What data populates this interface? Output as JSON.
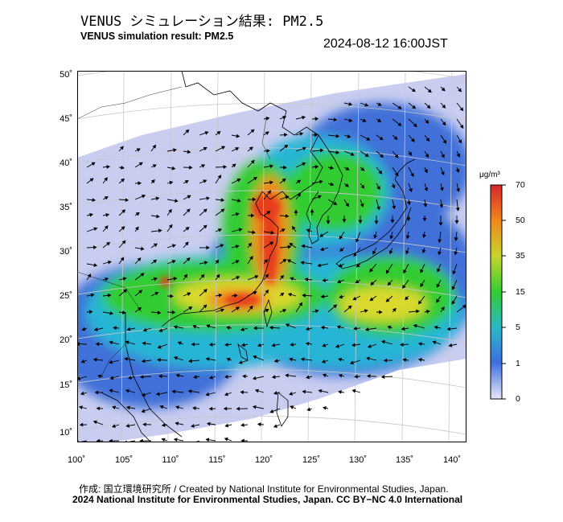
{
  "header": {
    "title_jp": "VENUS シミュレーション結果: PM2.5",
    "title_en": "VENUS simulation result: PM2.5",
    "timestamp": "2024-08-12 16:00JST"
  },
  "map": {
    "lat_labels": [
      "50˚",
      "45˚",
      "40˚",
      "35˚",
      "30˚",
      "25˚",
      "20˚",
      "15˚",
      "10˚"
    ],
    "lon_labels": [
      "100˚",
      "105˚",
      "110˚",
      "115˚",
      "120˚",
      "125˚",
      "130˚",
      "135˚",
      "140˚"
    ],
    "lat_range": [
      9,
      50
    ],
    "lon_range": [
      100,
      141
    ],
    "field_colors": {
      "low": "#d9dcf5",
      "blue": "#3f6fd8",
      "cyan": "#27b5d6",
      "green": "#33cc33",
      "yellow": "#d9d92e",
      "orange": "#f08a1c",
      "red": "#e63c1e"
    }
  },
  "colorbar": {
    "unit": "μg/m³",
    "tick_labels": [
      "70",
      "50",
      "35",
      "15",
      "5",
      "1",
      "0"
    ],
    "colors": [
      "#d9262b",
      "#f08a1c",
      "#c8d42a",
      "#33cc33",
      "#29b7c9",
      "#3d6fe0",
      "#e8e8f8"
    ]
  },
  "footer": {
    "credit": "作成: 国立環境研究所 / Created by National Institute for Environmental Studies, Japan.",
    "copyright": "2024 National Institute for Environmental Studies, Japan. CC BY−NC 4.0 International"
  }
}
